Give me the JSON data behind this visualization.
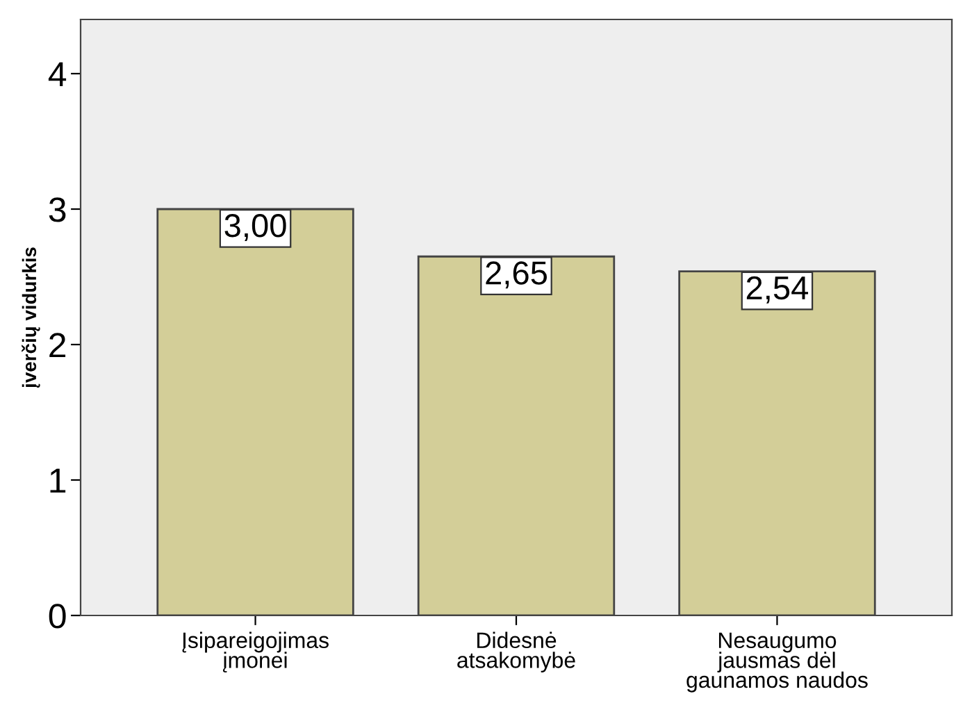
{
  "chart_data": {
    "type": "bar",
    "ylabel": "įverčių vidurkis",
    "categories": [
      "Įsipareigojimas\nįmonei",
      "Didesnė\natsakomybė",
      "Nesaugumo\njausmas dėl\ngaunamos naudos"
    ],
    "values": [
      3.0,
      2.65,
      2.54
    ],
    "value_labels": [
      "3,00",
      "2,65",
      "2,54"
    ],
    "color": "#d3ce98",
    "ylim": [
      0,
      4.4
    ],
    "yticks": [
      0,
      1,
      2,
      3,
      4
    ],
    "grid": false,
    "legend": false
  }
}
